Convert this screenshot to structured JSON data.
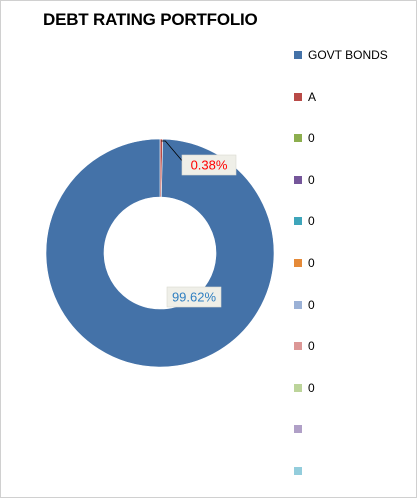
{
  "chart_data": {
    "type": "pie",
    "style": "donut",
    "title": "DEBT RATING PORTFOLIO",
    "slices": [
      {
        "label": "GOVT BONDS",
        "value": 99.62,
        "data_label": "99.62%",
        "color": "#4472A8"
      },
      {
        "label": "A",
        "value": 0.38,
        "data_label": "0.38%",
        "color": "#B94A47"
      }
    ],
    "legend_position": "right",
    "legend": [
      {
        "label": "GOVT BONDS",
        "color": "#4472A8"
      },
      {
        "label": "A",
        "color": "#B94A47"
      },
      {
        "label": "0",
        "color": "#8CAE4E"
      },
      {
        "label": "0",
        "color": "#75569A"
      },
      {
        "label": "0",
        "color": "#3EA5BA"
      },
      {
        "label": "0",
        "color": "#E58A38"
      },
      {
        "label": "0",
        "color": "#9BB1D6"
      },
      {
        "label": "0",
        "color": "#DC9796"
      },
      {
        "label": "0",
        "color": "#BCD49A"
      },
      {
        "label": "",
        "color": "#B0A0C7"
      },
      {
        "label": "",
        "color": "#93CDDC"
      }
    ],
    "data_label_colors": {
      "GOVT BONDS": "#2F7FC1",
      "A": "#FF0000"
    }
  }
}
